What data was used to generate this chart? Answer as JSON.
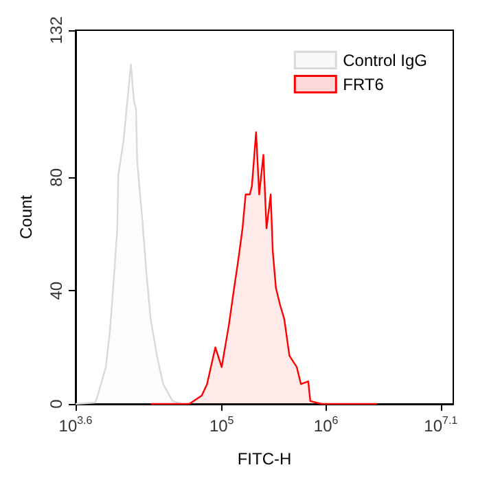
{
  "chart_data": {
    "type": "area",
    "xlabel": "FITC-H",
    "ylabel": "Count",
    "log": "x",
    "grid": false,
    "legend": "top right",
    "marker": "none",
    "line_style": "solid",
    "xlim": [
      3981,
      16595869
    ],
    "xticks": [
      {
        "value": 3981,
        "label": "10$^{3.6}$"
      },
      {
        "value": 100000,
        "label": "10$^{5}$"
      },
      {
        "value": 1000000,
        "label": "10$^{6}$"
      },
      {
        "value": 12589254,
        "label": "10$^{7.1}$"
      }
    ],
    "ylim": [
      0,
      132
    ],
    "yticks": [
      0,
      40,
      80,
      132
    ],
    "series": [
      {
        "name": "Control IgG",
        "color": "#d9d9d9",
        "x": [
          3981,
          6166,
          6607,
          7762,
          8511,
          9333,
          10000,
          10233,
          11482,
          13490,
          14454,
          15136,
          15488,
          17378,
          19055,
          20893,
          23988,
          27542,
          33884,
          41687
        ],
        "values": [
          0,
          0.5,
          4,
          13,
          26,
          46,
          62,
          81,
          93,
          120,
          107,
          104,
          86,
          65,
          46,
          30,
          17,
          7,
          1,
          0
        ]
      },
      {
        "name": "FRT6",
        "color": "#ff0000",
        "x": [
          20893,
          48978,
          64565,
          72444,
          87096,
          100000,
          117490,
          131826,
          144544,
          158489,
          169824,
          186209,
          194984,
          213796,
          229087,
          251189,
          269153,
          295121,
          309030,
          331131,
          363078,
          398107,
          446684,
          524807,
          575440,
          676083,
          707946,
          912011,
          3090295
        ],
        "values": [
          0,
          0,
          3,
          7,
          20,
          13,
          28,
          41,
          51,
          62,
          74,
          74,
          77,
          96,
          74,
          88,
          62,
          74,
          54,
          41,
          35,
          30,
          17,
          13,
          7,
          8,
          1,
          0,
          0
        ]
      }
    ]
  }
}
